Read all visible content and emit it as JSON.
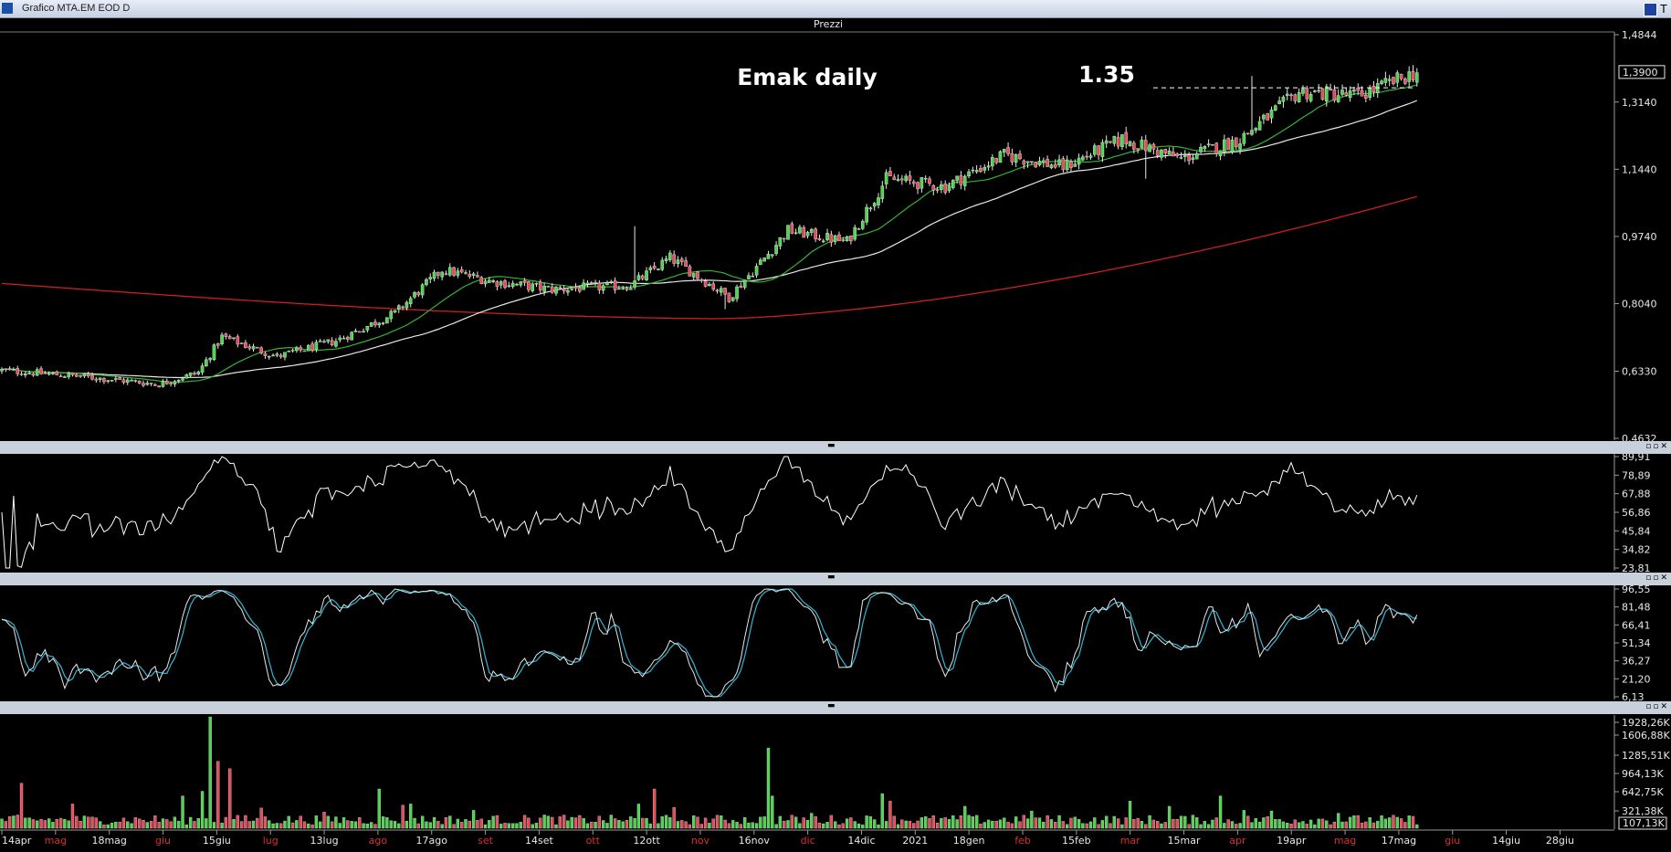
{
  "window": {
    "title": "Grafico MTA.EM EOD D",
    "corner_label": "T",
    "price_panel_title": "Prezzi"
  },
  "colors": {
    "background": "#000000",
    "candle_up": "#4cd64c",
    "candle_down": "#e84a5a",
    "ma_fast": "#34b334",
    "ma_mid": "#e8e8e8",
    "ma_slow": "#cc1f1f",
    "osc_line": "#ffffff",
    "stoch_k": "#e8e8e8",
    "stoch_d": "#2fb8d8",
    "vol_up": "#4cd64c",
    "vol_down": "#e84a5a",
    "date_label_normal": "#e8e8e8",
    "date_label_month": "#d43232",
    "divider": "#c8d0dc"
  },
  "chart_data": {
    "type": "candlestick",
    "title": "Emak daily",
    "annotation": "1.35",
    "resistance_level": 1.35,
    "current_price_label": "1,3900",
    "price_axis_ticks": [
      "1,4844",
      "1,3140",
      "1,1440",
      "0,9740",
      "0,8040",
      "0,6330",
      "0,4632"
    ],
    "ylim": [
      0.4632,
      1.4844
    ],
    "x_labels": [
      {
        "text": "14apr",
        "month": false
      },
      {
        "text": "mag",
        "month": true
      },
      {
        "text": "18mag",
        "month": false
      },
      {
        "text": "giu",
        "month": true
      },
      {
        "text": "15giu",
        "month": false
      },
      {
        "text": "lug",
        "month": true
      },
      {
        "text": "13lug",
        "month": false
      },
      {
        "text": "ago",
        "month": true
      },
      {
        "text": "17ago",
        "month": false
      },
      {
        "text": "set",
        "month": true
      },
      {
        "text": "14set",
        "month": false
      },
      {
        "text": "ott",
        "month": true
      },
      {
        "text": "12ott",
        "month": false
      },
      {
        "text": "nov",
        "month": true
      },
      {
        "text": "16nov",
        "month": false
      },
      {
        "text": "dic",
        "month": true
      },
      {
        "text": "14dic",
        "month": false
      },
      {
        "text": "2021",
        "month": false
      },
      {
        "text": "18gen",
        "month": false
      },
      {
        "text": "feb",
        "month": true
      },
      {
        "text": "15feb",
        "month": false
      },
      {
        "text": "mar",
        "month": true
      },
      {
        "text": "15mar",
        "month": false
      },
      {
        "text": "apr",
        "month": true
      },
      {
        "text": "19apr",
        "month": false
      },
      {
        "text": "mag",
        "month": true
      },
      {
        "text": "17mag",
        "month": false
      },
      {
        "text": "giu",
        "month": true
      },
      {
        "text": "14giu",
        "month": false
      },
      {
        "text": "28giu",
        "month": false
      }
    ],
    "close_anchors": [
      {
        "t": 0,
        "v": 0.635
      },
      {
        "t": 20,
        "v": 0.62
      },
      {
        "t": 40,
        "v": 0.6
      },
      {
        "t": 50,
        "v": 0.63
      },
      {
        "t": 56,
        "v": 0.72
      },
      {
        "t": 70,
        "v": 0.67
      },
      {
        "t": 85,
        "v": 0.71
      },
      {
        "t": 100,
        "v": 0.78
      },
      {
        "t": 112,
        "v": 0.89
      },
      {
        "t": 125,
        "v": 0.86
      },
      {
        "t": 140,
        "v": 0.84
      },
      {
        "t": 160,
        "v": 0.85
      },
      {
        "t": 170,
        "v": 0.92
      },
      {
        "t": 185,
        "v": 0.82
      },
      {
        "t": 195,
        "v": 0.93
      },
      {
        "t": 200,
        "v": 0.99
      },
      {
        "t": 215,
        "v": 0.96
      },
      {
        "t": 225,
        "v": 1.12
      },
      {
        "t": 240,
        "v": 1.1
      },
      {
        "t": 255,
        "v": 1.18
      },
      {
        "t": 270,
        "v": 1.15
      },
      {
        "t": 285,
        "v": 1.22
      },
      {
        "t": 300,
        "v": 1.17
      },
      {
        "t": 315,
        "v": 1.22
      },
      {
        "t": 330,
        "v": 1.34
      },
      {
        "t": 345,
        "v": 1.33
      },
      {
        "t": 360,
        "v": 1.39
      }
    ],
    "oscillator": {
      "axis_ticks": [
        "89,91",
        "78,89",
        "67,88",
        "56,86",
        "45,84",
        "34,82",
        "23,81"
      ],
      "ylim": [
        23.81,
        89.91
      ]
    },
    "stochastic": {
      "axis_ticks": [
        "96,55",
        "81,48",
        "66,41",
        "51,34",
        "36,27",
        "21,20",
        "6,13"
      ],
      "ylim": [
        6.13,
        96.55
      ]
    },
    "volume": {
      "axis_ticks": [
        "1928,26K",
        "1606,88K",
        "1285,51K",
        "964,13K",
        "642,75K",
        "321,38K"
      ],
      "current_label": "107,13K",
      "ylim": [
        0,
        1928.26
      ],
      "spikes": [
        {
          "t": 5,
          "v": 780
        },
        {
          "t": 18,
          "v": 420
        },
        {
          "t": 46,
          "v": 560
        },
        {
          "t": 51,
          "v": 640
        },
        {
          "t": 53,
          "v": 1928
        },
        {
          "t": 55,
          "v": 1160
        },
        {
          "t": 58,
          "v": 1030
        },
        {
          "t": 66,
          "v": 350
        },
        {
          "t": 82,
          "v": 280
        },
        {
          "t": 96,
          "v": 680
        },
        {
          "t": 102,
          "v": 400
        },
        {
          "t": 104,
          "v": 420
        },
        {
          "t": 120,
          "v": 310
        },
        {
          "t": 138,
          "v": 230
        },
        {
          "t": 162,
          "v": 420
        },
        {
          "t": 166,
          "v": 680
        },
        {
          "t": 171,
          "v": 360
        },
        {
          "t": 195,
          "v": 1390
        },
        {
          "t": 196,
          "v": 560
        },
        {
          "t": 206,
          "v": 260
        },
        {
          "t": 224,
          "v": 600
        },
        {
          "t": 226,
          "v": 470
        },
        {
          "t": 245,
          "v": 380
        },
        {
          "t": 262,
          "v": 300
        },
        {
          "t": 287,
          "v": 470
        },
        {
          "t": 297,
          "v": 380
        },
        {
          "t": 310,
          "v": 560
        },
        {
          "t": 316,
          "v": 310
        },
        {
          "t": 323,
          "v": 300
        },
        {
          "t": 340,
          "v": 260
        }
      ]
    }
  }
}
